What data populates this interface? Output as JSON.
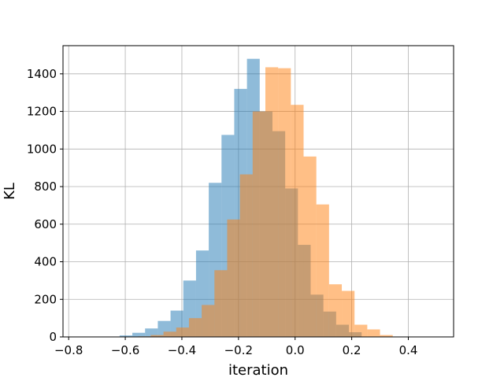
{
  "chart_data": {
    "type": "bar",
    "title": "",
    "xlabel": "iteration",
    "ylabel": "KL",
    "xlim": [
      -0.82,
      0.56
    ],
    "ylim": [
      0,
      1550
    ],
    "xticks": [
      -0.8,
      -0.6,
      -0.4,
      -0.2,
      0.0,
      0.2,
      0.4
    ],
    "xtick_labels": [
      "−0.8",
      "−0.6",
      "−0.4",
      "−0.2",
      "0.0",
      "0.2",
      "0.4"
    ],
    "yticks": [
      0,
      200,
      400,
      600,
      800,
      1000,
      1200,
      1400
    ],
    "ytick_labels": [
      "0",
      "200",
      "400",
      "600",
      "800",
      "1000",
      "1200",
      "1400"
    ],
    "grid": true,
    "legend": "none",
    "colors": [
      "#1f77b4",
      "#ff7f0e"
    ],
    "bar_alpha": 0.5,
    "series": [
      {
        "bin_edges": [
          -0.665,
          -0.62,
          -0.575,
          -0.53,
          -0.485,
          -0.44,
          -0.395,
          -0.35,
          -0.305,
          -0.26,
          -0.215,
          -0.17,
          -0.125,
          -0.08,
          -0.035,
          0.01,
          0.055,
          0.1,
          0.145,
          0.19,
          0.235
        ],
        "counts": [
          2,
          8,
          22,
          45,
          85,
          140,
          300,
          460,
          820,
          1075,
          1320,
          1480,
          1200,
          1095,
          790,
          490,
          225,
          135,
          65,
          25
        ]
      },
      {
        "bin_edges": [
          -0.6,
          -0.555,
          -0.51,
          -0.465,
          -0.42,
          -0.375,
          -0.33,
          -0.285,
          -0.24,
          -0.195,
          -0.15,
          -0.105,
          -0.06,
          -0.015,
          0.03,
          0.075,
          0.12,
          0.165,
          0.21,
          0.255,
          0.3,
          0.345
        ],
        "counts": [
          1,
          3,
          10,
          28,
          50,
          100,
          170,
          355,
          625,
          865,
          1200,
          1435,
          1430,
          1235,
          960,
          705,
          280,
          245,
          65,
          40,
          10
        ]
      }
    ]
  }
}
